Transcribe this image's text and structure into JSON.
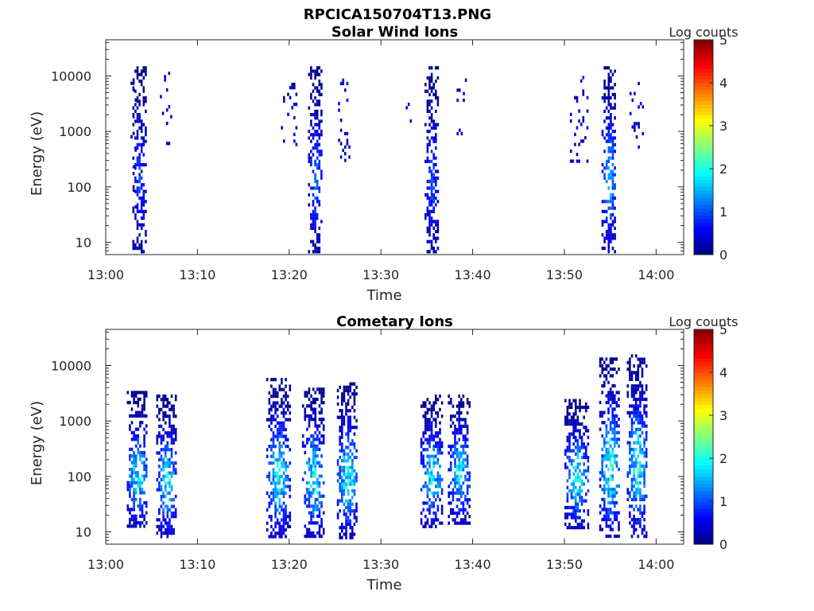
{
  "figure_title": "RPCICA150704T13.PNG",
  "chart_data": [
    {
      "type": "heatmap",
      "title": "Solar Wind Ions",
      "xlabel": "Time",
      "ylabel": "Energy (eV)",
      "x_ticks": [
        "13:00",
        "13:10",
        "13:20",
        "13:30",
        "13:40",
        "13:50",
        "14:00"
      ],
      "x_range_minutes": [
        0,
        63
      ],
      "y_ticks": [
        10,
        100,
        1000,
        10000
      ],
      "y_scale": "log",
      "y_range": [
        6,
        45000
      ],
      "colorbar": {
        "label": "Log counts",
        "ticks": [
          0,
          1,
          2,
          3,
          4,
          5
        ],
        "range": [
          0,
          5
        ],
        "colormap": "jet"
      },
      "bursts": [
        {
          "center_min": 3.6,
          "width_min": 1.4,
          "e_low": 7,
          "e_high": 15000,
          "level_max": 1.2,
          "density": 0.55,
          "sparse": false
        },
        {
          "center_min": 6.5,
          "width_min": 1.2,
          "e_low": 500,
          "e_high": 12000,
          "level_max": 0.6,
          "density": 0.15,
          "sparse": true
        },
        {
          "center_min": 3.0,
          "width_min": 0.6,
          "e_low": 30,
          "e_high": 12000,
          "level_max": 0.5,
          "density": 0.07,
          "sparse": true
        },
        {
          "center_min": 22.8,
          "width_min": 1.5,
          "e_low": 7,
          "e_high": 15000,
          "level_max": 1.4,
          "density": 0.55,
          "sparse": false
        },
        {
          "center_min": 20.0,
          "width_min": 1.8,
          "e_low": 600,
          "e_high": 10000,
          "level_max": 0.6,
          "density": 0.15,
          "sparse": true
        },
        {
          "center_min": 25.8,
          "width_min": 1.4,
          "e_low": 300,
          "e_high": 9000,
          "level_max": 0.6,
          "density": 0.14,
          "sparse": true
        },
        {
          "center_min": 35.5,
          "width_min": 1.5,
          "e_low": 7,
          "e_high": 15000,
          "level_max": 1.2,
          "density": 0.55,
          "sparse": false
        },
        {
          "center_min": 38.5,
          "width_min": 1.4,
          "e_low": 400,
          "e_high": 9000,
          "level_max": 0.6,
          "density": 0.15,
          "sparse": true
        },
        {
          "center_min": 33.2,
          "width_min": 1.0,
          "e_low": 900,
          "e_high": 10000,
          "level_max": 0.5,
          "density": 0.08,
          "sparse": true
        },
        {
          "center_min": 54.8,
          "width_min": 1.5,
          "e_low": 7,
          "e_high": 15000,
          "level_max": 1.9,
          "density": 0.55,
          "sparse": false
        },
        {
          "center_min": 51.6,
          "width_min": 2.0,
          "e_low": 300,
          "e_high": 10000,
          "level_max": 0.6,
          "density": 0.16,
          "sparse": true
        },
        {
          "center_min": 57.8,
          "width_min": 1.4,
          "e_low": 500,
          "e_high": 9000,
          "level_max": 0.6,
          "density": 0.15,
          "sparse": true
        }
      ]
    },
    {
      "type": "heatmap",
      "title": "Cometary Ions",
      "xlabel": "Time",
      "ylabel": "Energy (eV)",
      "x_ticks": [
        "13:00",
        "13:10",
        "13:20",
        "13:30",
        "13:40",
        "13:50",
        "14:00"
      ],
      "x_range_minutes": [
        0,
        63
      ],
      "y_ticks": [
        10,
        100,
        1000,
        10000
      ],
      "y_scale": "log",
      "y_range": [
        6,
        45000
      ],
      "colorbar": {
        "label": "Log counts",
        "ticks": [
          0,
          1,
          2,
          3,
          4,
          5
        ],
        "range": [
          0,
          5
        ],
        "colormap": "jet"
      },
      "bursts": [
        {
          "center_min": 3.4,
          "width_min": 2.2,
          "e_low": 12,
          "e_high": 3500,
          "level_max": 2.3,
          "density": 0.6,
          "sparse": false
        },
        {
          "center_min": 6.6,
          "width_min": 2.2,
          "e_low": 8,
          "e_high": 3000,
          "level_max": 2.3,
          "density": 0.6,
          "sparse": false
        },
        {
          "center_min": 18.8,
          "width_min": 2.6,
          "e_low": 8,
          "e_high": 6000,
          "level_max": 2.4,
          "density": 0.6,
          "sparse": false
        },
        {
          "center_min": 22.6,
          "width_min": 2.4,
          "e_low": 8,
          "e_high": 4000,
          "level_max": 2.4,
          "density": 0.6,
          "sparse": false
        },
        {
          "center_min": 26.3,
          "width_min": 2.2,
          "e_low": 8,
          "e_high": 5000,
          "level_max": 2.5,
          "density": 0.6,
          "sparse": false
        },
        {
          "center_min": 35.5,
          "width_min": 2.4,
          "e_low": 12,
          "e_high": 3000,
          "level_max": 2.3,
          "density": 0.6,
          "sparse": false
        },
        {
          "center_min": 38.5,
          "width_min": 2.4,
          "e_low": 15,
          "e_high": 3000,
          "level_max": 2.2,
          "density": 0.6,
          "sparse": false
        },
        {
          "center_min": 51.3,
          "width_min": 2.6,
          "e_low": 12,
          "e_high": 2500,
          "level_max": 2.4,
          "density": 0.6,
          "sparse": false
        },
        {
          "center_min": 54.9,
          "width_min": 2.2,
          "e_low": 8,
          "e_high": 14000,
          "level_max": 2.6,
          "density": 0.6,
          "sparse": false
        },
        {
          "center_min": 57.9,
          "width_min": 2.2,
          "e_low": 8,
          "e_high": 16000,
          "level_max": 2.5,
          "density": 0.6,
          "sparse": false
        }
      ]
    }
  ]
}
